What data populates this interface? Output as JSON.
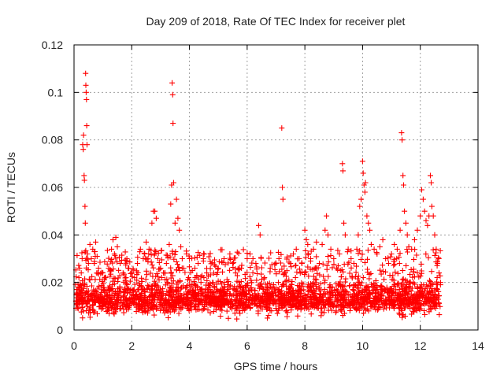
{
  "chart_data": {
    "type": "scatter",
    "title": "Day 209 of 2018, Rate Of TEC Index for receiver plet",
    "xlabel": "GPS time / hours",
    "ylabel": "ROTI / TECUs",
    "xlim": [
      0,
      14
    ],
    "ylim": [
      0,
      0.12
    ],
    "xticks": [
      0,
      2,
      4,
      6,
      8,
      10,
      12,
      14
    ],
    "xtick_labels": [
      "0",
      "2",
      "4",
      "6",
      "8",
      "10",
      "12",
      "14"
    ],
    "yticks": [
      0,
      0.02,
      0.04,
      0.06,
      0.08,
      0.1,
      0.12
    ],
    "ytick_labels": [
      "0",
      "0.02",
      "0.04",
      "0.06",
      "0.08",
      "0.1",
      "0.12"
    ],
    "grid": true,
    "marker": "plus",
    "color": "#ff0000",
    "series": [
      {
        "name": "ROTI",
        "points": [
          [
            0.12,
            0.012
          ],
          [
            0.14,
            0.018
          ],
          [
            0.17,
            0.022
          ],
          [
            0.19,
            0.026
          ],
          [
            0.22,
            0.016
          ],
          [
            0.25,
            0.024
          ],
          [
            0.28,
            0.03
          ],
          [
            0.3,
            0.078
          ],
          [
            0.32,
            0.076
          ],
          [
            0.33,
            0.082
          ],
          [
            0.35,
            0.065
          ],
          [
            0.36,
            0.063
          ],
          [
            0.38,
            0.052
          ],
          [
            0.39,
            0.045
          ],
          [
            0.4,
            0.108
          ],
          [
            0.41,
            0.103
          ],
          [
            0.42,
            0.1
          ],
          [
            0.43,
            0.097
          ],
          [
            0.44,
            0.086
          ],
          [
            0.45,
            0.078
          ],
          [
            0.47,
            0.032
          ],
          [
            0.5,
            0.028
          ],
          [
            0.55,
            0.036
          ],
          [
            0.6,
            0.03
          ],
          [
            0.65,
            0.034
          ],
          [
            0.7,
            0.028
          ],
          [
            0.75,
            0.037
          ],
          [
            0.8,
            0.031
          ],
          [
            0.85,
            0.026
          ],
          [
            1.0,
            0.024
          ],
          [
            1.1,
            0.022
          ],
          [
            1.2,
            0.026
          ],
          [
            1.3,
            0.034
          ],
          [
            1.35,
            0.038
          ],
          [
            1.4,
            0.032
          ],
          [
            1.45,
            0.039
          ],
          [
            1.5,
            0.035
          ],
          [
            1.6,
            0.028
          ],
          [
            1.7,
            0.024
          ],
          [
            1.8,
            0.022
          ],
          [
            1.9,
            0.026
          ],
          [
            2.0,
            0.024
          ],
          [
            2.1,
            0.022
          ],
          [
            2.2,
            0.028
          ],
          [
            2.3,
            0.034
          ],
          [
            2.4,
            0.03
          ],
          [
            2.5,
            0.037
          ],
          [
            2.6,
            0.034
          ],
          [
            2.7,
            0.045
          ],
          [
            2.75,
            0.05
          ],
          [
            2.8,
            0.05
          ],
          [
            2.85,
            0.047
          ],
          [
            2.9,
            0.03
          ],
          [
            3.0,
            0.026
          ],
          [
            3.1,
            0.024
          ],
          [
            3.2,
            0.028
          ],
          [
            3.3,
            0.036
          ],
          [
            3.35,
            0.053
          ],
          [
            3.38,
            0.061
          ],
          [
            3.4,
            0.104
          ],
          [
            3.42,
            0.099
          ],
          [
            3.43,
            0.087
          ],
          [
            3.45,
            0.062
          ],
          [
            3.5,
            0.045
          ],
          [
            3.55,
            0.055
          ],
          [
            3.6,
            0.047
          ],
          [
            3.65,
            0.042
          ],
          [
            3.7,
            0.035
          ],
          [
            3.75,
            0.03
          ],
          [
            3.8,
            0.026
          ],
          [
            3.9,
            0.032
          ],
          [
            4.0,
            0.03
          ],
          [
            4.1,
            0.025
          ],
          [
            4.2,
            0.022
          ],
          [
            4.3,
            0.028
          ],
          [
            4.4,
            0.02
          ],
          [
            4.5,
            0.022
          ],
          [
            4.6,
            0.024
          ],
          [
            4.8,
            0.02
          ],
          [
            5.0,
            0.026
          ],
          [
            5.2,
            0.03
          ],
          [
            5.4,
            0.032
          ],
          [
            5.5,
            0.028
          ],
          [
            5.6,
            0.024
          ],
          [
            5.8,
            0.026
          ],
          [
            6.0,
            0.03
          ],
          [
            6.1,
            0.032
          ],
          [
            6.2,
            0.03
          ],
          [
            6.3,
            0.028
          ],
          [
            6.4,
            0.044
          ],
          [
            6.45,
            0.04
          ],
          [
            6.6,
            0.022
          ],
          [
            6.8,
            0.026
          ],
          [
            7.0,
            0.028
          ],
          [
            7.1,
            0.03
          ],
          [
            7.2,
            0.085
          ],
          [
            7.22,
            0.06
          ],
          [
            7.24,
            0.055
          ],
          [
            7.3,
            0.024
          ],
          [
            7.5,
            0.028
          ],
          [
            7.6,
            0.032
          ],
          [
            7.7,
            0.034
          ],
          [
            7.8,
            0.03
          ],
          [
            7.9,
            0.028
          ],
          [
            8.0,
            0.042
          ],
          [
            8.05,
            0.038
          ],
          [
            8.1,
            0.036
          ],
          [
            8.2,
            0.03
          ],
          [
            8.3,
            0.034
          ],
          [
            8.4,
            0.037
          ],
          [
            8.5,
            0.028
          ],
          [
            8.6,
            0.036
          ],
          [
            8.7,
            0.042
          ],
          [
            8.75,
            0.048
          ],
          [
            8.8,
            0.04
          ],
          [
            8.9,
            0.034
          ],
          [
            9.0,
            0.03
          ],
          [
            9.1,
            0.026
          ],
          [
            9.2,
            0.032
          ],
          [
            9.3,
            0.07
          ],
          [
            9.32,
            0.067
          ],
          [
            9.35,
            0.045
          ],
          [
            9.4,
            0.04
          ],
          [
            9.5,
            0.034
          ],
          [
            9.6,
            0.03
          ],
          [
            9.7,
            0.028
          ],
          [
            9.8,
            0.034
          ],
          [
            9.85,
            0.04
          ],
          [
            9.9,
            0.052
          ],
          [
            9.95,
            0.055
          ],
          [
            10.0,
            0.071
          ],
          [
            10.02,
            0.066
          ],
          [
            10.05,
            0.061
          ],
          [
            10.08,
            0.058
          ],
          [
            10.1,
            0.062
          ],
          [
            10.15,
            0.048
          ],
          [
            10.2,
            0.045
          ],
          [
            10.25,
            0.042
          ],
          [
            10.3,
            0.036
          ],
          [
            10.4,
            0.034
          ],
          [
            10.5,
            0.032
          ],
          [
            10.6,
            0.035
          ],
          [
            10.7,
            0.038
          ],
          [
            10.8,
            0.03
          ],
          [
            10.9,
            0.028
          ],
          [
            11.0,
            0.032
          ],
          [
            11.1,
            0.036
          ],
          [
            11.2,
            0.034
          ],
          [
            11.3,
            0.042
          ],
          [
            11.35,
            0.083
          ],
          [
            11.37,
            0.08
          ],
          [
            11.4,
            0.065
          ],
          [
            11.42,
            0.061
          ],
          [
            11.45,
            0.05
          ],
          [
            11.5,
            0.045
          ],
          [
            11.55,
            0.04
          ],
          [
            11.6,
            0.035
          ],
          [
            11.7,
            0.034
          ],
          [
            11.8,
            0.038
          ],
          [
            11.9,
            0.042
          ],
          [
            12.0,
            0.048
          ],
          [
            12.05,
            0.059
          ],
          [
            12.1,
            0.055
          ],
          [
            12.15,
            0.05
          ],
          [
            12.2,
            0.046
          ],
          [
            12.25,
            0.044
          ],
          [
            12.3,
            0.048
          ],
          [
            12.35,
            0.065
          ],
          [
            12.38,
            0.062
          ],
          [
            12.4,
            0.052
          ],
          [
            12.45,
            0.048
          ],
          [
            12.5,
            0.04
          ],
          [
            12.55,
            0.034
          ],
          [
            12.6,
            0.028
          ],
          [
            12.65,
            0.024
          ],
          [
            12.7,
            0.02
          ]
        ]
      }
    ],
    "dense_band": {
      "x_range": [
        0.05,
        12.7
      ],
      "typical_range": [
        0.007,
        0.022
      ],
      "median": 0.013,
      "min": 0.004
    }
  }
}
